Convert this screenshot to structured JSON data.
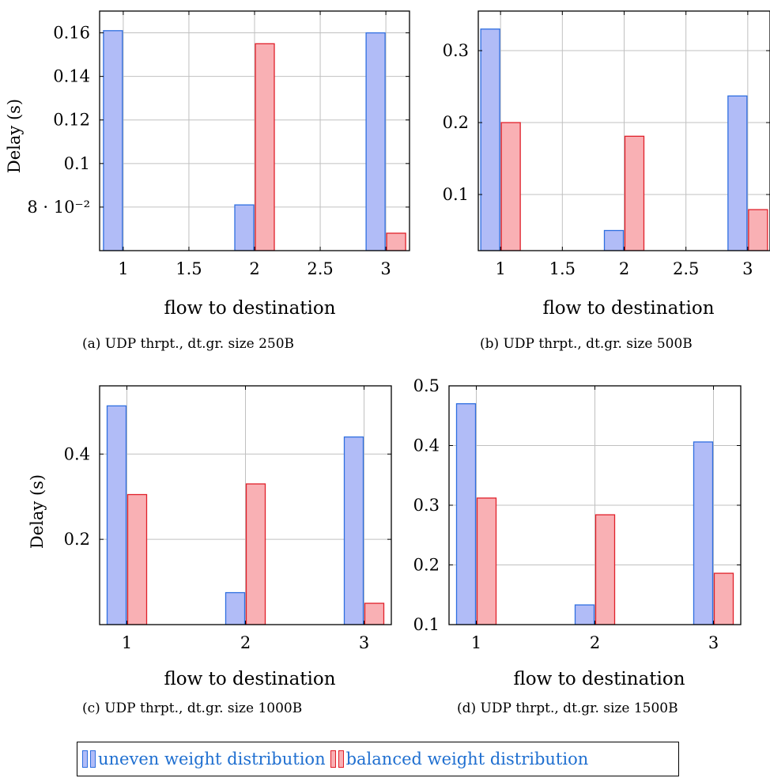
{
  "colors": {
    "uneven_fill": "#b1bcf7",
    "uneven_stroke": "#2f6fe0",
    "balanced_fill": "#f9b0b4",
    "balanced_stroke": "#e0202a",
    "grid": "#c0c0c0",
    "axis": "#000000"
  },
  "legend": {
    "uneven_label": "uneven weight distribution",
    "balanced_label": "balanced weight distribution"
  },
  "chart_data": [
    {
      "type": "bar",
      "caption": "(a) UDP thrpt., dt.gr. size 250B",
      "xlabel": "flow to destination",
      "ylabel": "Delay (s)",
      "xlim": [
        0.82,
        3.18
      ],
      "ylim": [
        0.06,
        0.17
      ],
      "xticks": [
        "1",
        "1.5",
        "2",
        "2.5",
        "3"
      ],
      "xtick_values": [
        1,
        1.5,
        2,
        2.5,
        3
      ],
      "yticks": [
        "8 · 10⁻²",
        "0.1",
        "0.12",
        "0.14",
        "0.16"
      ],
      "ytick_values": [
        0.08,
        0.1,
        0.12,
        0.14,
        0.16
      ],
      "grid": true,
      "categories": [
        1,
        2,
        3
      ],
      "series": [
        {
          "name": "uneven weight distribution",
          "values": [
            0.161,
            0.081,
            0.16
          ]
        },
        {
          "name": "balanced weight distribution",
          "values": [
            0.06,
            0.155,
            0.068
          ]
        }
      ]
    },
    {
      "type": "bar",
      "caption": "(b) UDP thrpt., dt.gr. size 500B",
      "xlabel": "flow to destination",
      "ylabel": "",
      "xlim": [
        0.82,
        3.18
      ],
      "ylim": [
        0.022,
        0.355
      ],
      "xticks": [
        "1",
        "1.5",
        "2",
        "2.5",
        "3"
      ],
      "xtick_values": [
        1,
        1.5,
        2,
        2.5,
        3
      ],
      "yticks": [
        "0.1",
        "0.2",
        "0.3"
      ],
      "ytick_values": [
        0.1,
        0.2,
        0.3
      ],
      "grid": true,
      "categories": [
        1,
        2,
        3
      ],
      "series": [
        {
          "name": "uneven weight distribution",
          "values": [
            0.33,
            0.05,
            0.237
          ]
        },
        {
          "name": "balanced weight distribution",
          "values": [
            0.2,
            0.181,
            0.079
          ]
        }
      ]
    },
    {
      "type": "bar",
      "caption": "(c) UDP thrpt., dt.gr. size 1000B",
      "xlabel": "flow to destination",
      "ylabel": "Delay (s)",
      "xlim": [
        0.77,
        3.23
      ],
      "ylim": [
        0.0,
        0.56
      ],
      "xticks": [
        "1",
        "2",
        "3"
      ],
      "xtick_values": [
        1,
        2,
        3
      ],
      "yticks": [
        "0.2",
        "0.4"
      ],
      "ytick_values": [
        0.2,
        0.4
      ],
      "grid": true,
      "categories": [
        1,
        2,
        3
      ],
      "series": [
        {
          "name": "uneven weight distribution",
          "values": [
            0.513,
            0.075,
            0.44
          ]
        },
        {
          "name": "balanced weight distribution",
          "values": [
            0.305,
            0.33,
            0.05
          ]
        }
      ]
    },
    {
      "type": "bar",
      "caption": "(d) UDP thrpt., dt.gr. size 1500B",
      "xlabel": "flow to destination",
      "ylabel": "",
      "xlim": [
        0.77,
        3.23
      ],
      "ylim": [
        0.1,
        0.5
      ],
      "xticks": [
        "1",
        "2",
        "3"
      ],
      "xtick_values": [
        1,
        2,
        3
      ],
      "yticks": [
        "0.1",
        "0.2",
        "0.3",
        "0.4",
        "0.5"
      ],
      "ytick_values": [
        0.1,
        0.2,
        0.3,
        0.4,
        0.5
      ],
      "grid": true,
      "categories": [
        1,
        2,
        3
      ],
      "series": [
        {
          "name": "uneven weight distribution",
          "values": [
            0.47,
            0.133,
            0.406
          ]
        },
        {
          "name": "balanced weight distribution",
          "values": [
            0.312,
            0.284,
            0.186
          ]
        }
      ]
    }
  ]
}
